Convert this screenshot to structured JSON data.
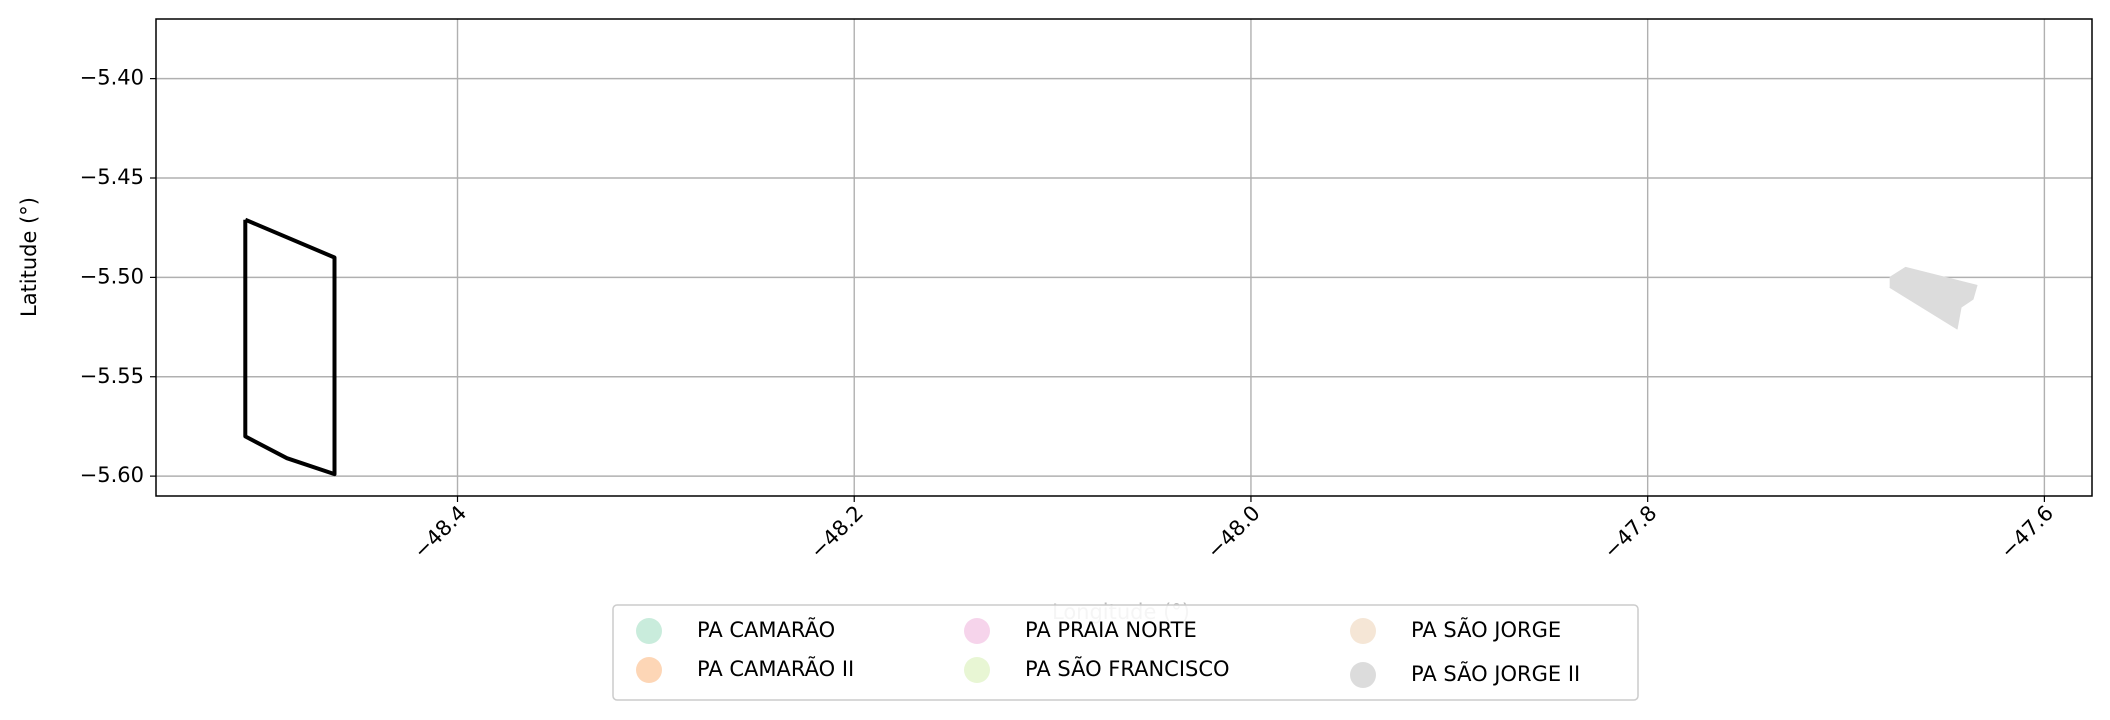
{
  "chart_data": {
    "type": "map",
    "xlabel": "Longitude (°)",
    "ylabel": "Latitude (°)",
    "xlim": [
      -48.552,
      -47.576
    ],
    "ylim": [
      -5.61,
      -5.37
    ],
    "xticks": [
      -48.4,
      -48.2,
      -48.0,
      -47.8,
      -47.6
    ],
    "yticks": [
      {
        "value": -5.4,
        "label": "−5.40"
      },
      {
        "value": -5.45,
        "label": "−5.45"
      },
      {
        "value": -5.5,
        "label": "−5.50"
      },
      {
        "value": -5.55,
        "label": "−5.55"
      },
      {
        "value": -5.6,
        "label": "−5.60"
      }
    ],
    "xtick_labels": [
      "−48.4",
      "−48.2",
      "−48.0",
      "−47.8",
      "−47.6"
    ],
    "grid": true,
    "legend": "lower center",
    "series": [
      {
        "name": "PA CAMARÃO",
        "color": "#c9ecdc"
      },
      {
        "name": "PA CAMARÃO II",
        "color": "#fdd6b6"
      },
      {
        "name": "PA PRAIA NORTE",
        "color": "#f6d4eb"
      },
      {
        "name": "PA SÃO FRANCISCO",
        "color": "#e8f6d4"
      },
      {
        "name": "PA SÃO JORGE",
        "color": "#f5e6d6"
      },
      {
        "name": "PA SÃO JORGE II",
        "color": "#dcdcdc"
      }
    ],
    "shapes": [
      {
        "color": "#000000",
        "fill": false,
        "lon": [
          -48.507,
          -48.462,
          -48.462,
          -48.486,
          -48.507,
          -48.507
        ],
        "lat": [
          -5.471,
          -5.49,
          -5.599,
          -5.591,
          -5.58,
          -5.471
        ]
      },
      {
        "color": "#dcdcdc",
        "fill": true,
        "lon": [
          -47.678,
          -47.67,
          -47.634,
          -47.636,
          -47.642,
          -47.644,
          -47.678
        ],
        "lat": [
          -5.5,
          -5.495,
          -5.504,
          -5.511,
          -5.515,
          -5.526,
          -5.505
        ]
      }
    ]
  }
}
